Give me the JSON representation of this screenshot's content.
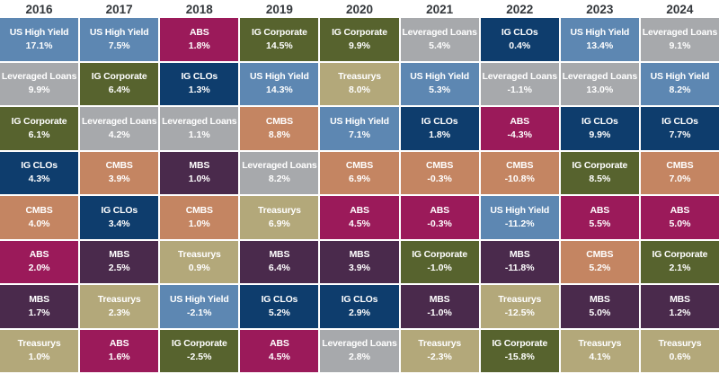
{
  "chart_data": {
    "type": "table",
    "title": "",
    "description": "Ranked annual returns by asset class (quilt chart), best to worst top-to-bottom per year",
    "header_text_color": "#33373b",
    "cell_text_color": "#ffffff",
    "grid_gap_color": "#ffffff",
    "years": [
      "2016",
      "2017",
      "2018",
      "2019",
      "2020",
      "2021",
      "2022",
      "2023",
      "2024"
    ],
    "asset_colors": {
      "US High Yield": "#5d87b2",
      "Leveraged Loans": "#a7a9ac",
      "IG Corporate": "#57632e",
      "IG CLOs": "#0e3d6d",
      "CMBS": "#c48562",
      "ABS": "#9b1a5a",
      "MBS": "#4a2a4c",
      "Treasurys": "#b3a87a"
    },
    "columns": [
      {
        "year": "2016",
        "cells": [
          {
            "asset": "US High Yield",
            "value": "17.1%"
          },
          {
            "asset": "Leveraged Loans",
            "value": "9.9%"
          },
          {
            "asset": "IG Corporate",
            "value": "6.1%"
          },
          {
            "asset": "IG CLOs",
            "value": "4.3%"
          },
          {
            "asset": "CMBS",
            "value": "4.0%"
          },
          {
            "asset": "ABS",
            "value": "2.0%"
          },
          {
            "asset": "MBS",
            "value": "1.7%"
          },
          {
            "asset": "Treasurys",
            "value": "1.0%"
          }
        ]
      },
      {
        "year": "2017",
        "cells": [
          {
            "asset": "US High Yield",
            "value": "7.5%"
          },
          {
            "asset": "IG Corporate",
            "value": "6.4%"
          },
          {
            "asset": "Leveraged Loans",
            "value": "4.2%"
          },
          {
            "asset": "CMBS",
            "value": "3.9%"
          },
          {
            "asset": "IG CLOs",
            "value": "3.4%"
          },
          {
            "asset": "MBS",
            "value": "2.5%"
          },
          {
            "asset": "Treasurys",
            "value": "2.3%"
          },
          {
            "asset": "ABS",
            "value": "1.6%"
          }
        ]
      },
      {
        "year": "2018",
        "cells": [
          {
            "asset": "ABS",
            "value": "1.8%"
          },
          {
            "asset": "IG CLOs",
            "value": "1.3%"
          },
          {
            "asset": "Leveraged Loans",
            "value": "1.1%"
          },
          {
            "asset": "MBS",
            "value": "1.0%"
          },
          {
            "asset": "CMBS",
            "value": "1.0%"
          },
          {
            "asset": "Treasurys",
            "value": "0.9%"
          },
          {
            "asset": "US High Yield",
            "value": "-2.1%"
          },
          {
            "asset": "IG Corporate",
            "value": "-2.5%"
          }
        ]
      },
      {
        "year": "2019",
        "cells": [
          {
            "asset": "IG Corporate",
            "value": "14.5%"
          },
          {
            "asset": "US High Yield",
            "value": "14.3%"
          },
          {
            "asset": "CMBS",
            "value": "8.8%"
          },
          {
            "asset": "Leveraged Loans",
            "value": "8.2%"
          },
          {
            "asset": "Treasurys",
            "value": "6.9%"
          },
          {
            "asset": "MBS",
            "value": "6.4%"
          },
          {
            "asset": "IG CLOs",
            "value": "5.2%"
          },
          {
            "asset": "ABS",
            "value": "4.5%"
          }
        ]
      },
      {
        "year": "2020",
        "cells": [
          {
            "asset": "IG Corporate",
            "value": "9.9%"
          },
          {
            "asset": "Treasurys",
            "value": "8.0%"
          },
          {
            "asset": "US High Yield",
            "value": "7.1%"
          },
          {
            "asset": "CMBS",
            "value": "6.9%"
          },
          {
            "asset": "ABS",
            "value": "4.5%"
          },
          {
            "asset": "MBS",
            "value": "3.9%"
          },
          {
            "asset": "IG CLOs",
            "value": "2.9%"
          },
          {
            "asset": "Leveraged Loans",
            "value": "2.8%"
          }
        ]
      },
      {
        "year": "2021",
        "cells": [
          {
            "asset": "Leveraged Loans",
            "value": "5.4%"
          },
          {
            "asset": "US High Yield",
            "value": "5.3%"
          },
          {
            "asset": "IG CLOs",
            "value": "1.8%"
          },
          {
            "asset": "CMBS",
            "value": "-0.3%"
          },
          {
            "asset": "ABS",
            "value": "-0.3%"
          },
          {
            "asset": "IG Corporate",
            "value": "-1.0%"
          },
          {
            "asset": "MBS",
            "value": "-1.0%"
          },
          {
            "asset": "Treasurys",
            "value": "-2.3%"
          }
        ]
      },
      {
        "year": "2022",
        "cells": [
          {
            "asset": "IG CLOs",
            "value": "0.4%"
          },
          {
            "asset": "Leveraged Loans",
            "value": "-1.1%"
          },
          {
            "asset": "ABS",
            "value": "-4.3%"
          },
          {
            "asset": "CMBS",
            "value": "-10.8%"
          },
          {
            "asset": "US High Yield",
            "value": "-11.2%"
          },
          {
            "asset": "MBS",
            "value": "-11.8%"
          },
          {
            "asset": "Treasurys",
            "value": "-12.5%"
          },
          {
            "asset": "IG Corporate",
            "value": "-15.8%"
          }
        ]
      },
      {
        "year": "2023",
        "cells": [
          {
            "asset": "US High Yield",
            "value": "13.4%"
          },
          {
            "asset": "Leveraged Loans",
            "value": "13.0%"
          },
          {
            "asset": "IG CLOs",
            "value": "9.9%"
          },
          {
            "asset": "IG Corporate",
            "value": "8.5%"
          },
          {
            "asset": "ABS",
            "value": "5.5%"
          },
          {
            "asset": "CMBS",
            "value": "5.2%"
          },
          {
            "asset": "MBS",
            "value": "5.0%"
          },
          {
            "asset": "Treasurys",
            "value": "4.1%"
          }
        ]
      },
      {
        "year": "2024",
        "cells": [
          {
            "asset": "Leveraged Loans",
            "value": "9.1%"
          },
          {
            "asset": "US High Yield",
            "value": "8.2%"
          },
          {
            "asset": "IG CLOs",
            "value": "7.7%"
          },
          {
            "asset": "CMBS",
            "value": "7.0%"
          },
          {
            "asset": "ABS",
            "value": "5.0%"
          },
          {
            "asset": "IG Corporate",
            "value": "2.1%"
          },
          {
            "asset": "MBS",
            "value": "1.2%"
          },
          {
            "asset": "Treasurys",
            "value": "0.6%"
          }
        ]
      }
    ]
  }
}
